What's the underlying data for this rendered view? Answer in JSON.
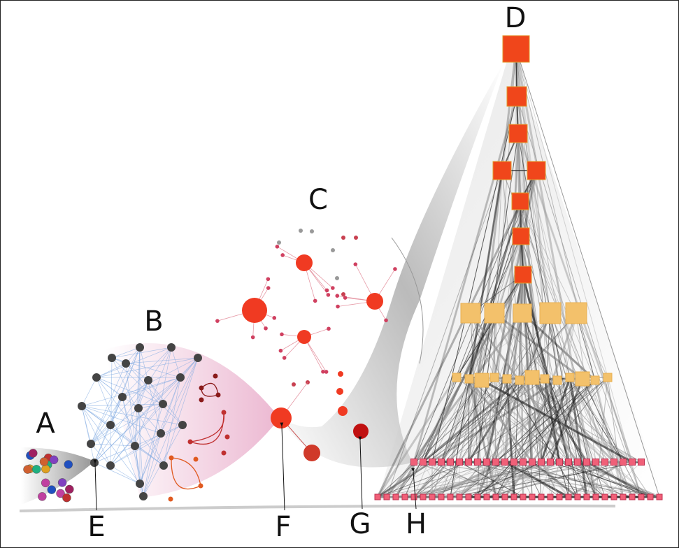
{
  "labels": [
    "A",
    "B",
    "C",
    "D",
    "E",
    "F",
    "G",
    "H"
  ]
}
